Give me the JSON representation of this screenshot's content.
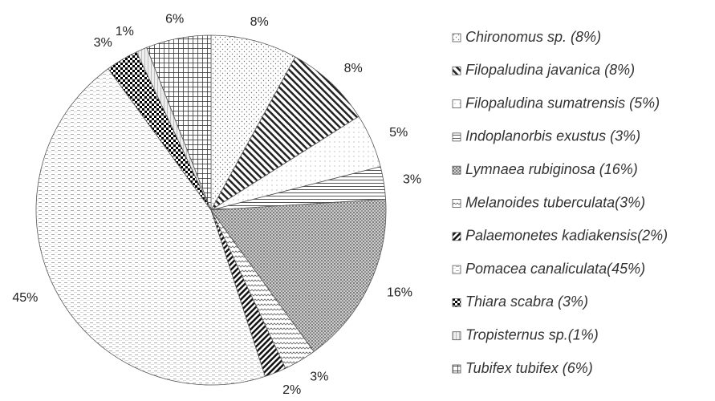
{
  "chart_data": {
    "type": "pie",
    "categories": [
      "Chironomus sp. (8%)",
      "Filopaludina javanica (8%)",
      "Filopaludina sumatrensis (5%)",
      "Indoplanorbis exustus (3%)",
      "Lymnaea rubiginosa (16%)",
      "Melanoides tuberculata(3%)",
      "Palaemonetes kadiakensis(2%)",
      "Pomacea canaliculata(45%)",
      "Thiara scabra (3%)",
      "Tropisternus sp.(1%)",
      "Tubifex tubifex (6%)"
    ],
    "values": [
      8,
      8,
      5,
      3,
      16,
      3,
      2,
      45,
      3,
      1,
      6
    ],
    "value_labels": [
      "8%",
      "8%",
      "5%",
      "3%",
      "16%",
      "3%",
      "2%",
      "45%",
      "3%",
      "1%",
      "6%"
    ]
  }
}
